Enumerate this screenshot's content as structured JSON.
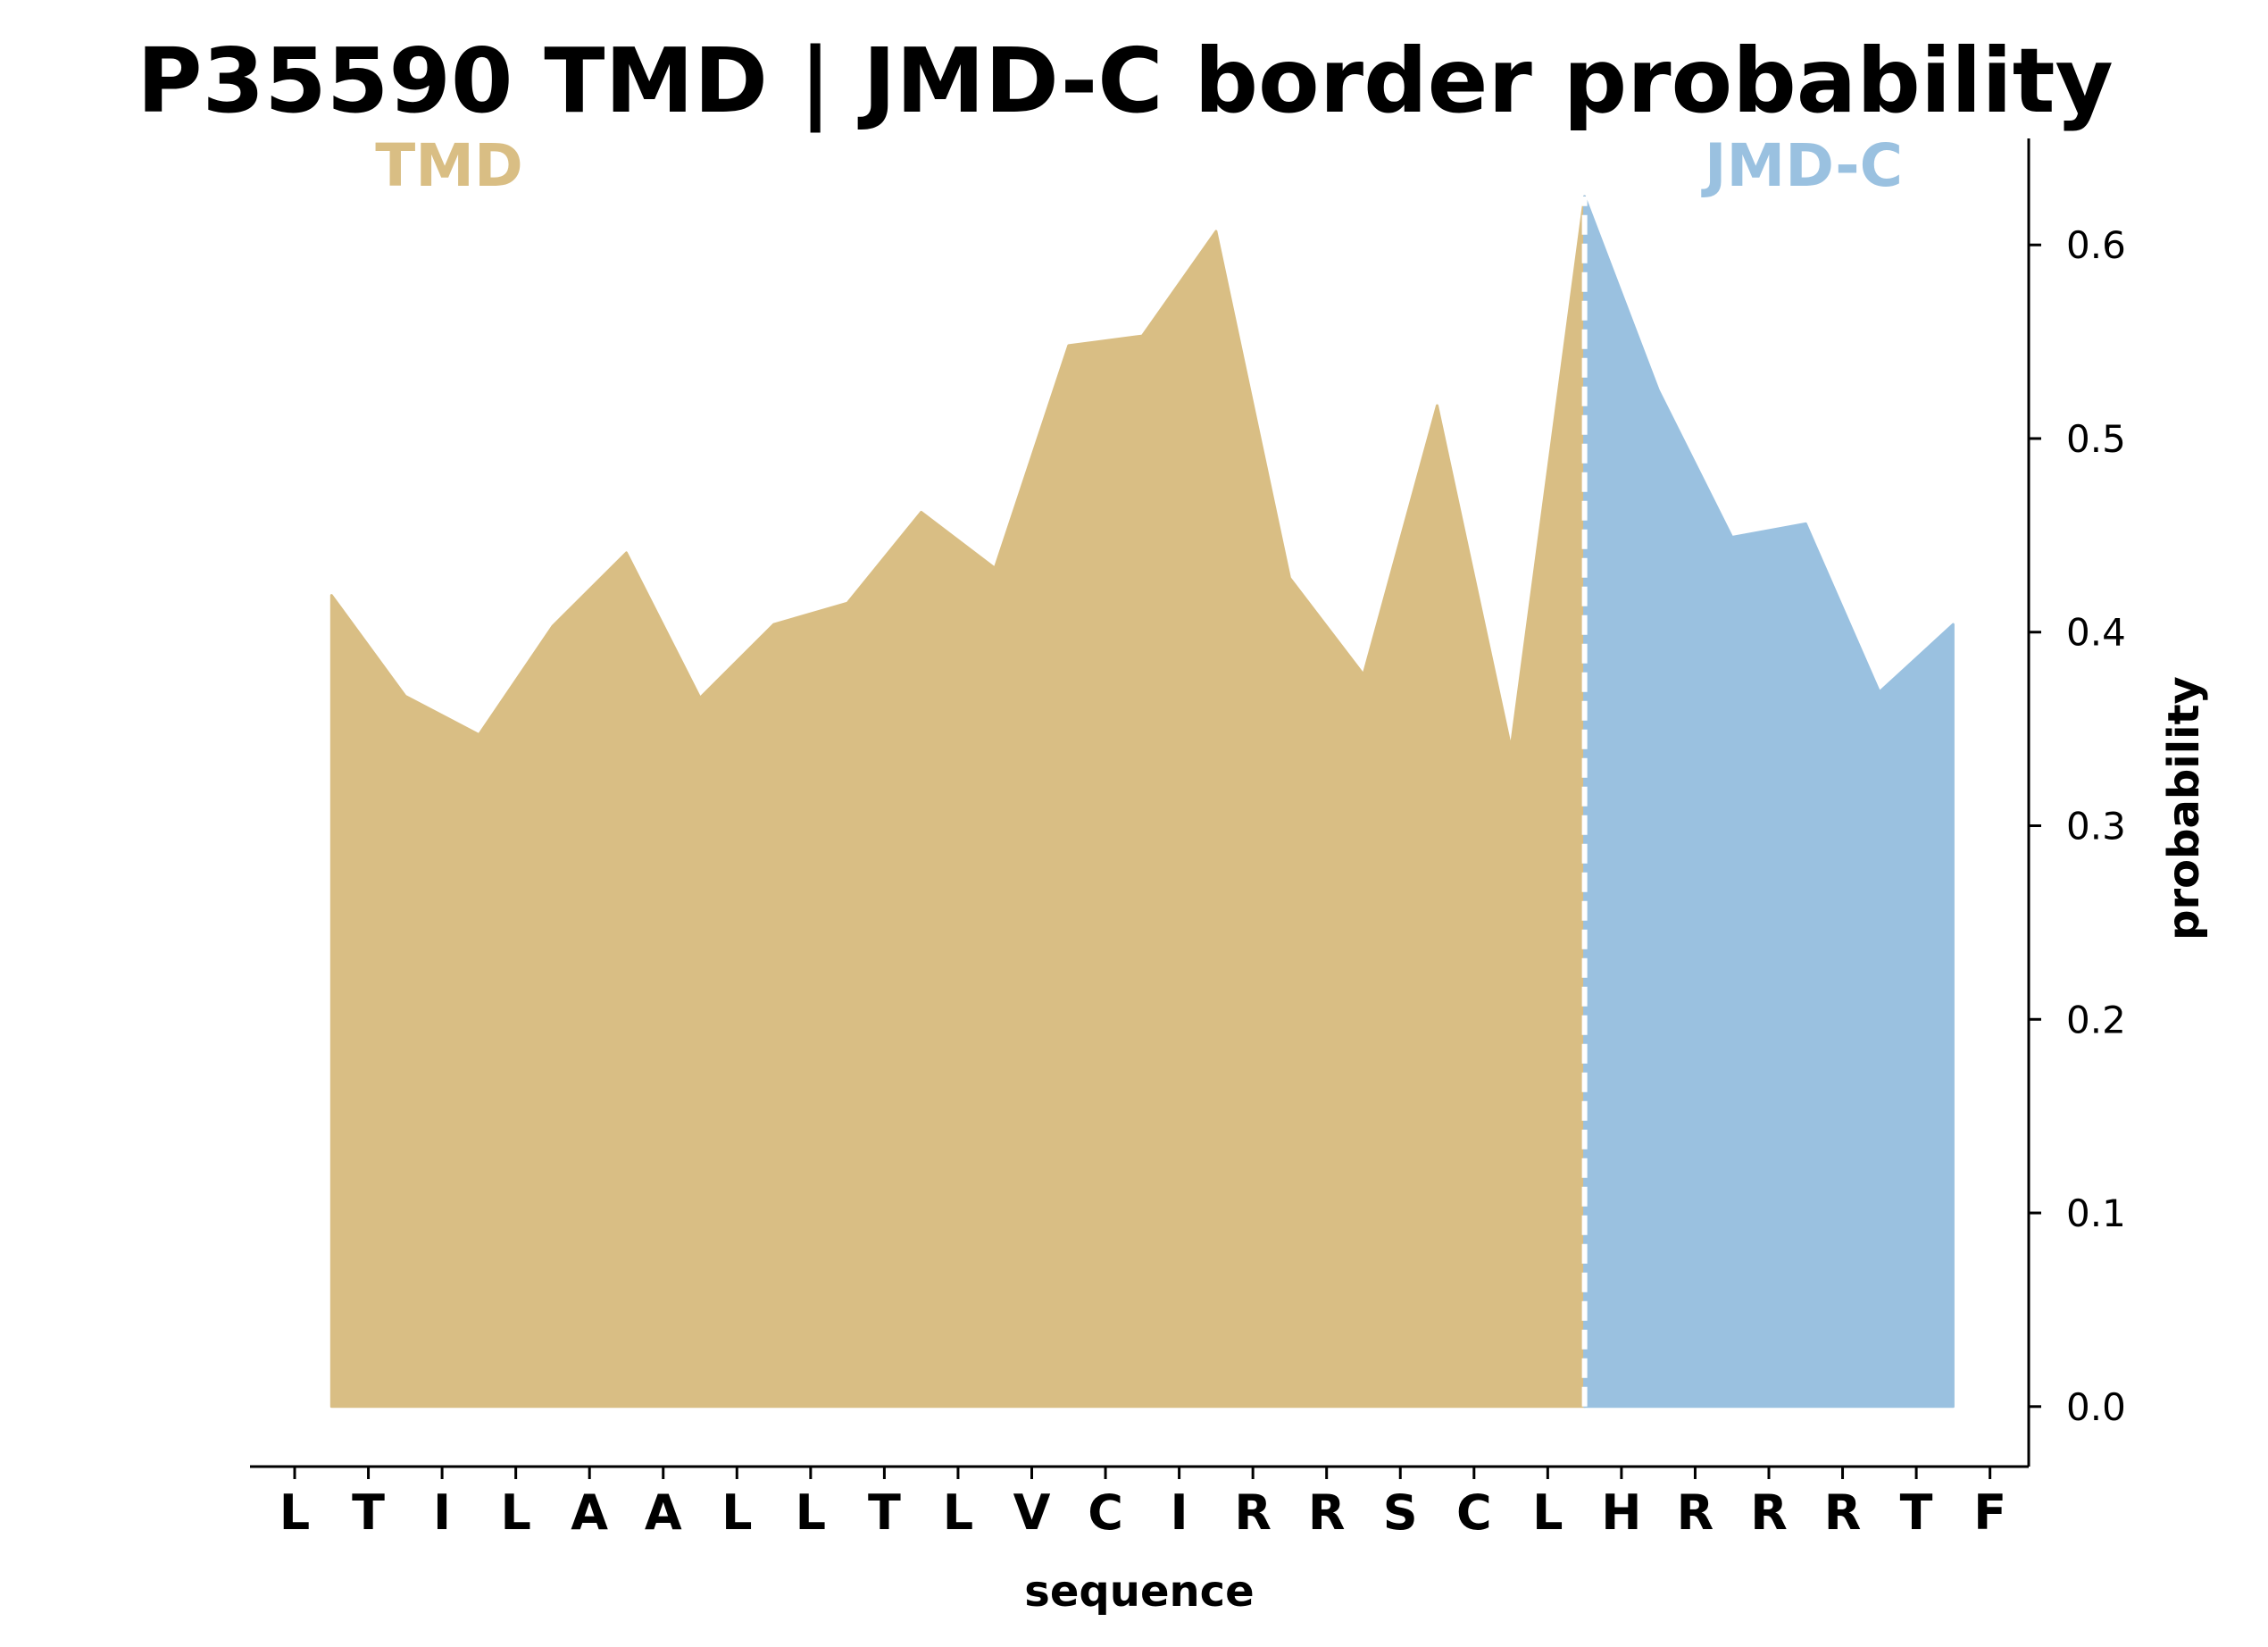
{
  "chart_data": {
    "type": "area",
    "title": "P35590 TMD | JMD-C border probability",
    "xlabel": "sequence",
    "ylabel": "probability",
    "categories": [
      "L",
      "T",
      "I",
      "L",
      "A",
      "A",
      "L",
      "L",
      "T",
      "L",
      "V",
      "C",
      "I",
      "R",
      "R",
      "S",
      "C",
      "L",
      "H",
      "R",
      "R",
      "R",
      "T",
      "F"
    ],
    "ylim": [
      -0.031,
      0.655
    ],
    "yticks": [
      0.0,
      0.1,
      0.2,
      0.3,
      0.4,
      0.5,
      0.6
    ],
    "y_axis_side": "right",
    "grid": false,
    "border_position": 17.5,
    "series": [
      {
        "name": "TMD",
        "color": "#d9be84",
        "x": [
          0.5,
          1.5,
          2.5,
          3.5,
          4.5,
          5.5,
          6.5,
          7.5,
          8.5,
          9.5,
          10.5,
          11.5,
          12.5,
          13.5,
          14.5,
          15.5,
          16.5,
          17.5
        ],
        "values": [
          0.419,
          0.367,
          0.347,
          0.403,
          0.441,
          0.366,
          0.404,
          0.415,
          0.462,
          0.433,
          0.548,
          0.553,
          0.607,
          0.428,
          0.378,
          0.517,
          0.34,
          0.625
        ]
      },
      {
        "name": "JMD-C",
        "color": "#9ac1e0",
        "x": [
          17.5,
          18.5,
          19.5,
          20.5,
          21.5,
          22.5
        ],
        "values": [
          0.625,
          0.525,
          0.449,
          0.456,
          0.369,
          0.404
        ]
      }
    ]
  }
}
